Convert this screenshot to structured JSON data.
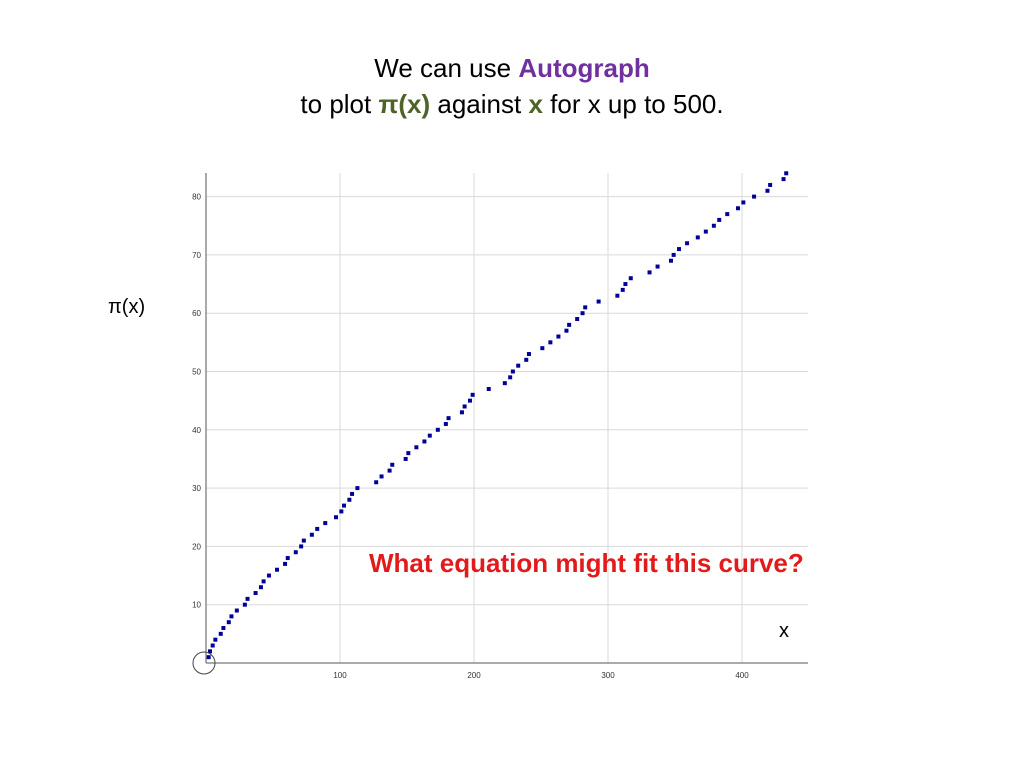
{
  "title": {
    "line1_pre": "We can use ",
    "line1_highlight": "Autograph",
    "line2_pre": "to plot ",
    "line2_func": "π(x)",
    "line2_mid": " against ",
    "line2_var": "x",
    "line2_post": " for x up to 500."
  },
  "question": "What equation might fit this curve?",
  "colors": {
    "title_highlight": "#7030A0",
    "variable_highlight": "#4F6228",
    "question": "#E31A1C",
    "points": "#000099",
    "grid": "#d9d9d9",
    "axis": "#555555"
  },
  "chart_data": {
    "type": "scatter",
    "xlabel": "x",
    "ylabel": "π(x)",
    "xlim": [
      0,
      433
    ],
    "ylim": [
      0,
      84
    ],
    "xticks": [
      100,
      200,
      300,
      400
    ],
    "yticks": [
      10,
      20,
      30,
      40,
      50,
      60,
      70,
      80
    ],
    "grid": true,
    "origin_marker": "circle",
    "series": [
      {
        "x": [
          2,
          3,
          5,
          7,
          11,
          13,
          17,
          19,
          23,
          29,
          31,
          37,
          41,
          43,
          47,
          53,
          59,
          61,
          67,
          71,
          73,
          79,
          83,
          89,
          97,
          101,
          103,
          107,
          109,
          113,
          127,
          131,
          137,
          139,
          149,
          151,
          157,
          163,
          167,
          173,
          179,
          181,
          191,
          193,
          197,
          199,
          211,
          223,
          227,
          229,
          233,
          239,
          241,
          251,
          257,
          263,
          269,
          271,
          277,
          281,
          283,
          293,
          307,
          311,
          313,
          317,
          331,
          337,
          347,
          349,
          353,
          359,
          367,
          373,
          379,
          383,
          389,
          397,
          401,
          409,
          419,
          421,
          431,
          433
        ],
        "y": [
          1,
          2,
          3,
          4,
          5,
          6,
          7,
          8,
          9,
          10,
          11,
          12,
          13,
          14,
          15,
          16,
          17,
          18,
          19,
          20,
          21,
          22,
          23,
          24,
          25,
          26,
          27,
          28,
          29,
          30,
          31,
          32,
          33,
          34,
          35,
          36,
          37,
          38,
          39,
          40,
          41,
          42,
          43,
          44,
          45,
          46,
          47,
          48,
          49,
          50,
          51,
          52,
          53,
          54,
          55,
          56,
          57,
          58,
          59,
          60,
          61,
          62,
          63,
          64,
          65,
          66,
          67,
          68,
          69,
          70,
          71,
          72,
          73,
          74,
          75,
          76,
          77,
          78,
          79,
          80,
          81,
          82,
          83,
          84
        ]
      }
    ]
  }
}
